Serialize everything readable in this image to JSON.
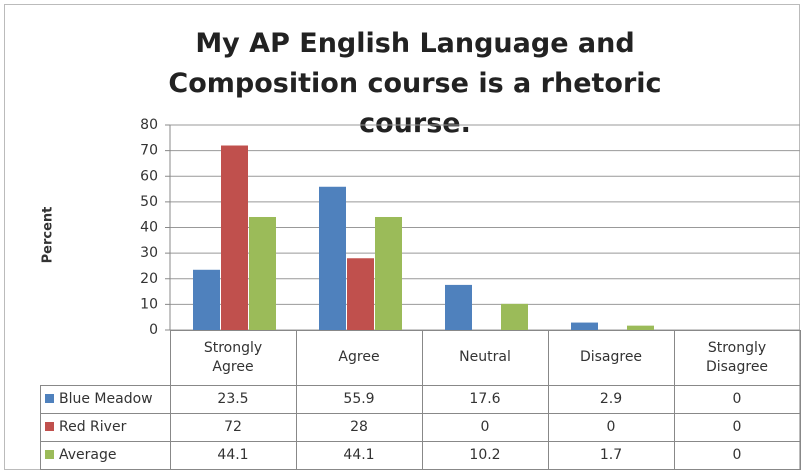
{
  "chart_data": {
    "type": "bar",
    "title": "My AP English Language and Composition course is a rhetoric course.",
    "y_label": "Percent",
    "categories": [
      "Strongly Agree",
      "Agree",
      "Neutral",
      "Disagree",
      "Strongly Disagree"
    ],
    "series": [
      {
        "name": "Blue Meadow",
        "color": "#4f81bd",
        "values": [
          23.5,
          55.9,
          17.6,
          2.9,
          0
        ]
      },
      {
        "name": "Red River",
        "color": "#c0504d",
        "values": [
          72,
          28,
          0,
          0,
          0
        ]
      },
      {
        "name": "Average",
        "color": "#9bbb59",
        "values": [
          44.1,
          44.1,
          10.2,
          1.7,
          0
        ]
      }
    ],
    "ylim": [
      0,
      80
    ],
    "yticks": [
      0,
      10,
      20,
      30,
      40,
      50,
      60,
      70,
      80
    ],
    "grid": true,
    "data_table": true
  }
}
